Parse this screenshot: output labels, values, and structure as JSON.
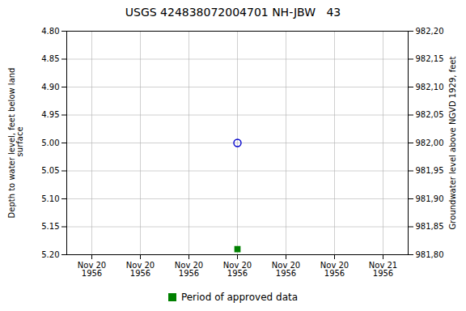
{
  "chart_data": {
    "type": "scatter",
    "title": "USGS 424838072004701 NH-JBW   43",
    "categories": [
      "Nov 20\n1956",
      "Nov 20\n1956",
      "Nov 20\n1956",
      "Nov 20\n1956",
      "Nov 20\n1956",
      "Nov 20\n1956",
      "Nov 21\n1956"
    ],
    "series": [
      {
        "color": "#0000cc",
        "marker": "circle",
        "values": [
          null,
          null,
          null,
          5.0,
          null,
          null,
          null
        ]
      },
      {
        "name": "Period of approved data",
        "color": "#008000",
        "marker": "square",
        "values": [
          null,
          null,
          null,
          5.19,
          null,
          null,
          null
        ]
      }
    ],
    "y_label": "Depth to water level, feet below land\n surface",
    "y2_label": "Groundwater level above NGVD 1929, feet",
    "ylim": [
      5.2,
      4.8
    ],
    "yticks": [
      {
        "value": 4.8,
        "label": "4.80"
      },
      4.85,
      {
        "value": 4.9,
        "label": "4.90"
      },
      4.95,
      {
        "value": 5.0,
        "label": "5.00"
      },
      5.05,
      {
        "value": 5.1,
        "label": "5.10"
      },
      5.15,
      {
        "value": 5.2,
        "label": "5.20"
      }
    ],
    "y2lim": [
      981.8,
      982.2
    ],
    "y2ticks": [
      {
        "value": 982.2,
        "label": "982,20"
      },
      {
        "value": 982.15,
        "label": "982,15"
      },
      {
        "value": 982.1,
        "label": "982,10"
      },
      {
        "value": 982.05,
        "label": "982,05"
      },
      {
        "value": 982.0,
        "label": "982,00"
      },
      {
        "value": 981.95,
        "label": "981,95"
      },
      {
        "value": 981.9,
        "label": "981,90"
      },
      {
        "value": 981.85,
        "label": "981,85"
      },
      {
        "value": 981.8,
        "label": "981,80"
      }
    ],
    "grid": true,
    "legend": "bottom"
  }
}
